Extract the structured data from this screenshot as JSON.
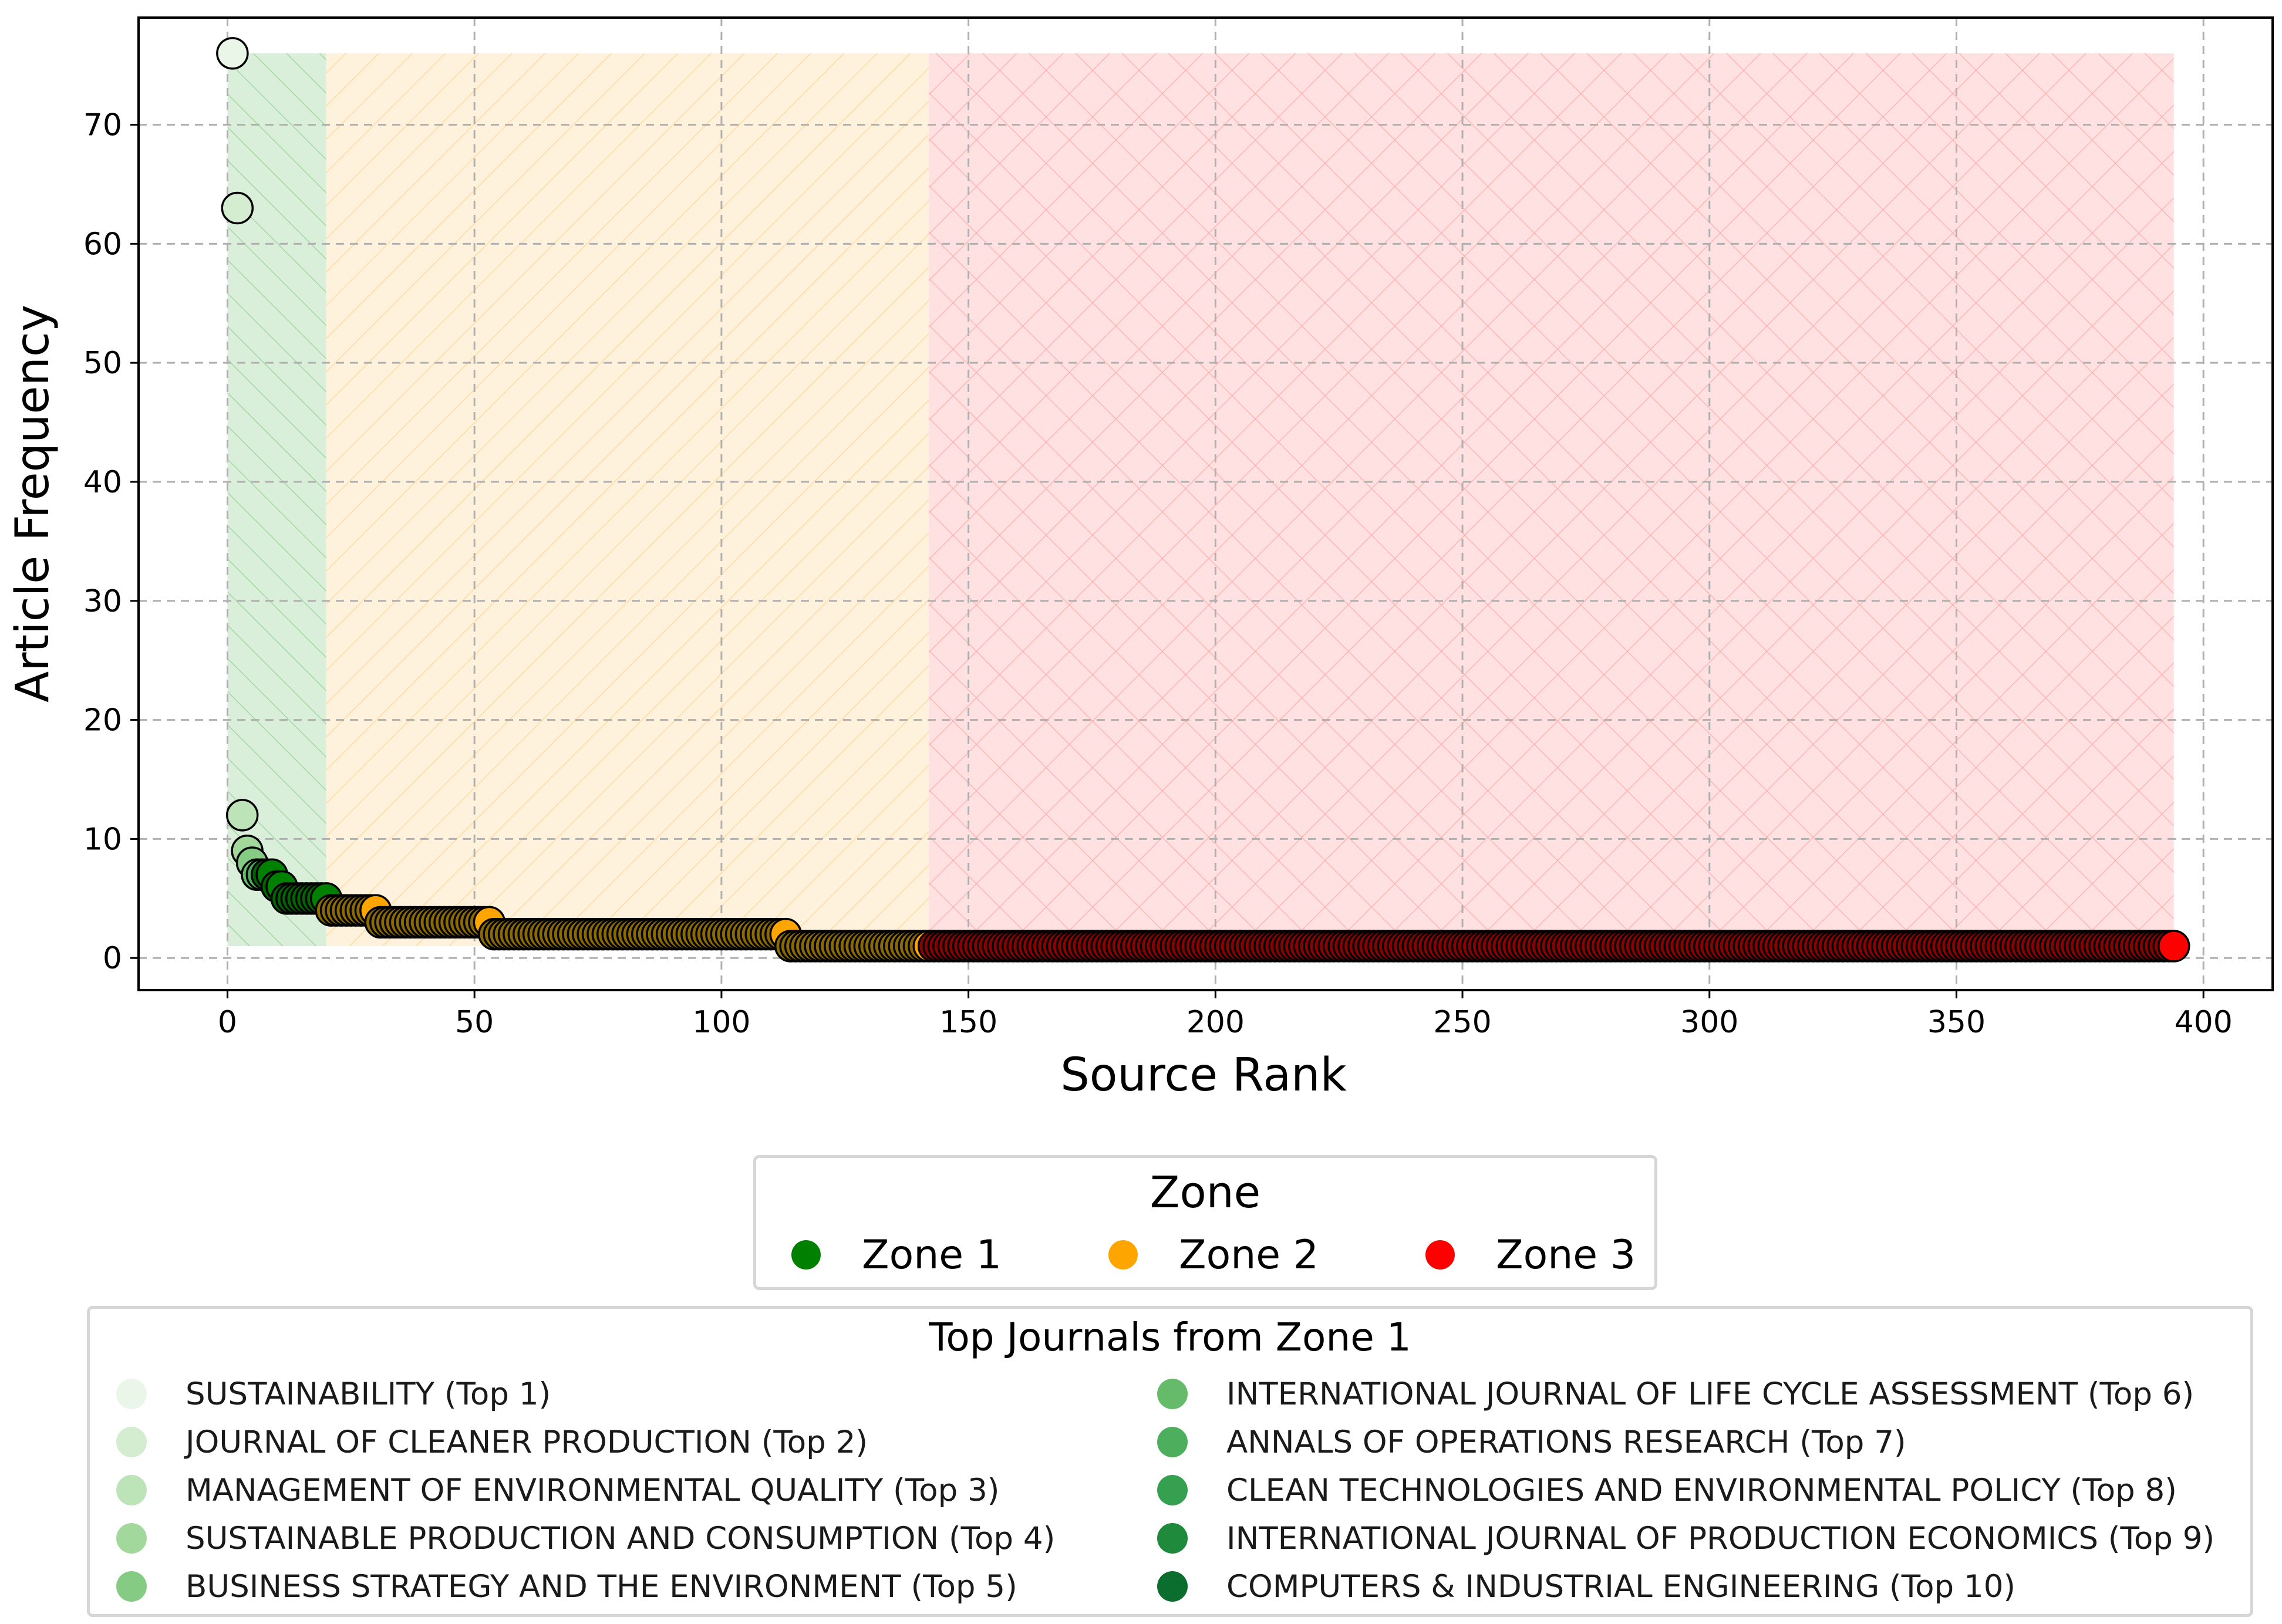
{
  "chart_data": {
    "type": "scatter",
    "title": "",
    "xlabel": "Source Rank",
    "ylabel": "Article Frequency",
    "xlim": [
      -18,
      414
    ],
    "ylim": [
      -2.7,
      79
    ],
    "x_ticks": [
      0,
      50,
      100,
      150,
      200,
      250,
      300,
      350,
      400
    ],
    "y_ticks": [
      0,
      10,
      20,
      30,
      40,
      50,
      60,
      70
    ],
    "grid": true,
    "zones": [
      {
        "name": "Zone 1",
        "x_range": [
          0,
          20
        ],
        "y_max": 76,
        "fill": "#d9efd9",
        "hatch": "diagonal"
      },
      {
        "name": "Zone 2",
        "x_range": [
          20,
          142
        ],
        "y_max": 76,
        "fill": "#fff2dc",
        "hatch": "back-diagonal"
      },
      {
        "name": "Zone 3",
        "x_range": [
          142,
          394
        ],
        "y_max": 76,
        "fill": "#ffe1e1",
        "hatch": "cross"
      }
    ],
    "runs": [
      {
        "x_start": 1,
        "x_end": 1,
        "y": 76,
        "zone": "top"
      },
      {
        "x_start": 2,
        "x_end": 2,
        "y": 63,
        "zone": "top"
      },
      {
        "x_start": 3,
        "x_end": 3,
        "y": 12,
        "zone": "top"
      },
      {
        "x_start": 4,
        "x_end": 4,
        "y": 9,
        "zone": "top"
      },
      {
        "x_start": 5,
        "x_end": 5,
        "y": 8,
        "zone": "top"
      },
      {
        "x_start": 6,
        "x_end": 7,
        "y": 7,
        "zone": "top"
      },
      {
        "x_start": 8,
        "x_end": 9,
        "y": 7,
        "zone": "Zone 1"
      },
      {
        "x_start": 10,
        "x_end": 11,
        "y": 6,
        "zone": "Zone 1"
      },
      {
        "x_start": 12,
        "x_end": 20,
        "y": 5,
        "zone": "Zone 1"
      },
      {
        "x_start": 21,
        "x_end": 30,
        "y": 4,
        "zone": "Zone 2"
      },
      {
        "x_start": 31,
        "x_end": 53,
        "y": 3,
        "zone": "Zone 2"
      },
      {
        "x_start": 54,
        "x_end": 113,
        "y": 2,
        "zone": "Zone 2"
      },
      {
        "x_start": 114,
        "x_end": 142,
        "y": 1,
        "zone": "Zone 2"
      },
      {
        "x_start": 143,
        "x_end": 394,
        "y": 1,
        "zone": "Zone 3"
      }
    ],
    "top_colors": [
      "#eaf6e8",
      "#d4edd0",
      "#bde4b8",
      "#a3d89d",
      "#86cb84",
      "#66bb6a",
      "#4daf5e",
      "#35a04f",
      "#1f8a3c",
      "#0b6e2e"
    ],
    "zone_colors": {
      "Zone 1": "#008000",
      "Zone 2": "#ffa500",
      "Zone 3": "#ff0000"
    },
    "zone_dark_colors": {
      "Zone 1": "#006400",
      "Zone 2": "#8b6a00",
      "Zone 3": "#8b0000"
    },
    "legend_zone": {
      "title": "Zone",
      "placement": "below-plot-center",
      "entries": [
        {
          "label": "Zone 1",
          "color": "#008000"
        },
        {
          "label": "Zone 2",
          "color": "#ffa500"
        },
        {
          "label": "Zone 3",
          "color": "#ff0000"
        }
      ]
    },
    "legend_journals": {
      "title": "Top Journals from Zone 1",
      "placement": "bottom",
      "entries": [
        {
          "label": "SUSTAINABILITY (Top 1)",
          "color": "#eaf6e8"
        },
        {
          "label": "JOURNAL OF CLEANER PRODUCTION (Top 2)",
          "color": "#d4edd0"
        },
        {
          "label": "MANAGEMENT OF ENVIRONMENTAL QUALITY (Top 3)",
          "color": "#bde4b8"
        },
        {
          "label": "SUSTAINABLE PRODUCTION AND CONSUMPTION (Top 4)",
          "color": "#a3d89d"
        },
        {
          "label": "BUSINESS STRATEGY AND THE ENVIRONMENT (Top 5)",
          "color": "#86cb84"
        },
        {
          "label": "INTERNATIONAL JOURNAL OF LIFE CYCLE ASSESSMENT (Top 6)",
          "color": "#66bb6a"
        },
        {
          "label": "ANNALS OF OPERATIONS RESEARCH (Top 7)",
          "color": "#4daf5e"
        },
        {
          "label": "CLEAN TECHNOLOGIES AND ENVIRONMENTAL POLICY (Top 8)",
          "color": "#35a04f"
        },
        {
          "label": "INTERNATIONAL JOURNAL OF PRODUCTION ECONOMICS (Top 9)",
          "color": "#1f8a3c"
        },
        {
          "label": "COMPUTERS & INDUSTRIAL ENGINEERING (Top 10)",
          "color": "#0b6e2e"
        }
      ]
    }
  }
}
